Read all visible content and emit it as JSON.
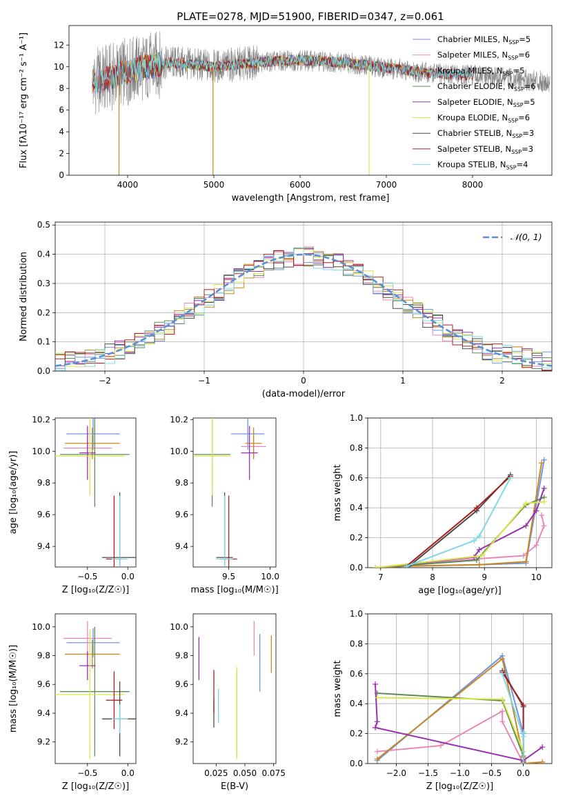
{
  "colors": {
    "series": [
      "#6f93e3",
      "#e888b8",
      "#c8871e",
      "#5e8a58",
      "#9a30b0",
      "#dbe64a",
      "#4a4a4a",
      "#a81e1e",
      "#7ed8e3"
    ],
    "spectrum_data": "#7f7f7f",
    "dashed": "#5a8fd6",
    "grid": "#b0b0b0"
  },
  "chart_data": [
    {
      "id": "spectrum",
      "type": "line",
      "title": "PLATE=0278, MJD=51900, FIBERID=0347, z=0.061",
      "xlabel": "wavelength [Angstrom, rest frame]",
      "ylabel": "Flux [fλ10⁻¹⁷ erg cm⁻² s⁻¹ A⁻¹]",
      "xlim": [
        3320,
        8920
      ],
      "ylim": [
        0,
        13.8
      ],
      "xticks": [
        4000,
        5000,
        6000,
        7000,
        8000
      ],
      "yticks": [
        0,
        2,
        4,
        6,
        8,
        10,
        12
      ],
      "grid": false,
      "legend_position": "top-right",
      "legend": [
        {
          "base": "Chabrier MILES, N",
          "sub": "SSP",
          "tail": "=5"
        },
        {
          "base": "Salpeter MILES, N",
          "sub": "SSP",
          "tail": "=6"
        },
        {
          "base": "Kroupa MILES, N",
          "sub": "SSP",
          "tail": "=5"
        },
        {
          "base": "Chabrier ELODIE, N",
          "sub": "SSP",
          "tail": "=6"
        },
        {
          "base": "Salpeter ELODIE, N",
          "sub": "SSP",
          "tail": "=5"
        },
        {
          "base": "Kroupa ELODIE, N",
          "sub": "SSP",
          "tail": "=6"
        },
        {
          "base": "Chabrier STELIB, N",
          "sub": "SSP",
          "tail": "=3"
        },
        {
          "base": "Salpeter STELIB, N",
          "sub": "SSP",
          "tail": "=3"
        },
        {
          "base": "Kroupa STELIB, N",
          "sub": "SSP",
          "tail": "=4"
        }
      ],
      "data_spectrum": {
        "x_range": [
          3600,
          8900
        ],
        "continuum": [
          [
            3600,
            8.6
          ],
          [
            3700,
            8.8
          ],
          [
            3900,
            9.3
          ],
          [
            4100,
            9.8
          ],
          [
            4500,
            10.4
          ],
          [
            5000,
            10.0
          ],
          [
            5500,
            10.4
          ],
          [
            6000,
            10.6
          ],
          [
            6500,
            10.4
          ],
          [
            7000,
            9.9
          ],
          [
            7500,
            9.4
          ],
          [
            8000,
            9.2
          ],
          [
            8900,
            8.6
          ]
        ]
      },
      "model_dropouts": [
        {
          "series": 2,
          "x": 3900
        },
        {
          "series": 2,
          "x": 4990
        },
        {
          "series": 5,
          "x": 6800
        }
      ],
      "model_ranges": [
        [
          3590,
          7420
        ],
        [
          3590,
          7420
        ],
        [
          3590,
          7420
        ],
        [
          4020,
          6810
        ],
        [
          4020,
          6810
        ],
        [
          4020,
          6810
        ],
        [
          3590,
          8000
        ],
        [
          3590,
          8000
        ],
        [
          3590,
          8000
        ]
      ]
    },
    {
      "id": "residuals",
      "type": "line",
      "xlabel": "(data-model)/error",
      "ylabel": "Normed distribution",
      "xlim": [
        -2.5,
        2.5
      ],
      "ylim": [
        0,
        0.51
      ],
      "xticks": [
        -2,
        -1,
        0,
        1,
        2
      ],
      "yticks": [
        0.0,
        0.1,
        0.2,
        0.3,
        0.4,
        0.5
      ],
      "grid": true,
      "legend_position": "top-right",
      "legend": [
        {
          "label": "𝒩(0, 1)",
          "style": "dashed"
        }
      ],
      "bin_width": 0.1,
      "bins_start": -2.5,
      "normal": {
        "mu": 0,
        "sigma": 1
      }
    },
    {
      "id": "age-vs-Z",
      "type": "scatter",
      "xlabel": "Z [log₁₀(Z/Z☉)]",
      "ylabel": "age  [log₁₀(age/yr)]",
      "xlim": [
        -0.9,
        0.1
      ],
      "ylim": [
        9.27,
        10.21
      ],
      "xticks": [
        -0.5,
        0.0
      ],
      "xtick_labels": [
        "−0.5",
        "0.0"
      ],
      "yticks": [
        9.4,
        9.6,
        9.8,
        10.0,
        10.2
      ],
      "errorbars": [
        {
          "series": 0,
          "x": -0.43,
          "xerr": 0.33,
          "y": 10.11,
          "yerr": 0.1
        },
        {
          "series": 1,
          "x": -0.5,
          "xerr": 0.3,
          "y": 10.02,
          "yerr": 0.07
        },
        {
          "series": 2,
          "x": -0.44,
          "xerr": 0.34,
          "y": 10.05,
          "yerr": 0.1
        },
        {
          "series": 3,
          "x": -0.41,
          "xerr": 0.43,
          "y": 9.98,
          "yerr": 0.33
        },
        {
          "series": 4,
          "x": -0.5,
          "xerr": 0.1,
          "y": 9.99,
          "yerr": 0.17
        },
        {
          "series": 5,
          "x": -0.47,
          "xerr": 0.43,
          "y": 9.97,
          "yerr": 0.25
        },
        {
          "series": 6,
          "x": -0.1,
          "xerr": 0.22,
          "y": 9.33,
          "yerr": 0.41
        },
        {
          "series": 7,
          "x": -0.17,
          "xerr": 0.1,
          "y": 9.32,
          "yerr": 0.4
        },
        {
          "series": 8,
          "x": -0.1,
          "xerr": 0.1,
          "y": 9.32,
          "yerr": 0.4
        }
      ]
    },
    {
      "id": "age-vs-mass",
      "type": "scatter",
      "xlabel": "mass [log₁₀(M/M☉)]",
      "ylabel": "",
      "xlim": [
        9.07,
        10.07
      ],
      "ylim": [
        9.27,
        10.21
      ],
      "xticks": [
        9.5,
        10.0
      ],
      "xtick_labels": [
        "9.5",
        "10.0"
      ],
      "yticks": [
        9.4,
        9.6,
        9.8,
        10.0,
        10.2
      ],
      "errorbars": [
        {
          "series": 0,
          "x": 9.73,
          "xerr": 0.2,
          "y": 10.11,
          "yerr": 0.1
        },
        {
          "series": 1,
          "x": 9.8,
          "xerr": 0.15,
          "y": 10.03,
          "yerr": 0.07
        },
        {
          "series": 2,
          "x": 9.8,
          "xerr": 0.1,
          "y": 10.05,
          "yerr": 0.1
        },
        {
          "series": 3,
          "x": 9.3,
          "xerr": 0.22,
          "y": 9.98,
          "yerr": 0.33
        },
        {
          "series": 4,
          "x": 9.75,
          "xerr": 0.1,
          "y": 9.99,
          "yerr": 0.17
        },
        {
          "series": 5,
          "x": 9.3,
          "xerr": 0.22,
          "y": 9.97,
          "yerr": 0.25
        },
        {
          "series": 6,
          "x": 9.45,
          "xerr": 0.1,
          "y": 9.33,
          "yerr": 0.41
        },
        {
          "series": 7,
          "x": 9.5,
          "xerr": 0.1,
          "y": 9.32,
          "yerr": 0.4
        },
        {
          "series": 8,
          "x": 9.45,
          "xerr": 0.1,
          "y": 9.32,
          "yerr": 0.4
        }
      ]
    },
    {
      "id": "weight-vs-age",
      "type": "line",
      "xlabel": "age  [log₁₀(age/yr)]",
      "ylabel": "mass weight",
      "xlim": [
        6.75,
        10.3
      ],
      "ylim": [
        0,
        1.0
      ],
      "xticks": [
        7,
        8,
        9,
        10
      ],
      "yticks": [
        0.0,
        0.2,
        0.4,
        0.6,
        0.8,
        1.0
      ],
      "grid": true,
      "series": [
        {
          "series": 0,
          "points": [
            [
              6.9,
              0.0
            ],
            [
              7.5,
              0.01
            ],
            [
              8.9,
              0.02
            ],
            [
              9.8,
              0.03
            ],
            [
              10.15,
              0.72
            ]
          ]
        },
        {
          "series": 1,
          "points": [
            [
              6.9,
              0.0
            ],
            [
              8.9,
              0.06
            ],
            [
              9.75,
              0.08
            ],
            [
              10.0,
              0.15
            ],
            [
              10.15,
              0.28
            ],
            [
              10.1,
              0.35
            ]
          ]
        },
        {
          "series": 2,
          "points": [
            [
              6.9,
              0.0
            ],
            [
              7.5,
              0.01
            ],
            [
              8.9,
              0.02
            ],
            [
              9.8,
              0.04
            ],
            [
              10.1,
              0.7
            ]
          ]
        },
        {
          "series": 3,
          "points": [
            [
              6.9,
              0.0
            ],
            [
              8.85,
              0.05
            ],
            [
              9.8,
              0.42
            ],
            [
              10.15,
              0.47
            ]
          ]
        },
        {
          "series": 4,
          "points": [
            [
              6.9,
              0.0
            ],
            [
              8.8,
              0.07
            ],
            [
              8.9,
              0.12
            ],
            [
              9.8,
              0.28
            ],
            [
              10.0,
              0.38
            ],
            [
              10.15,
              0.53
            ]
          ]
        },
        {
          "series": 5,
          "points": [
            [
              6.9,
              0.0
            ],
            [
              8.95,
              0.08
            ],
            [
              9.8,
              0.43
            ],
            [
              10.15,
              0.44
            ]
          ]
        },
        {
          "series": 6,
          "points": [
            [
              7.55,
              0.01
            ],
            [
              8.85,
              0.38
            ],
            [
              9.5,
              0.62
            ]
          ]
        },
        {
          "series": 7,
          "points": [
            [
              7.5,
              0.01
            ],
            [
              8.85,
              0.4
            ],
            [
              9.5,
              0.61
            ]
          ]
        },
        {
          "series": 8,
          "points": [
            [
              7.5,
              0.01
            ],
            [
              8.8,
              0.18
            ],
            [
              8.9,
              0.21
            ],
            [
              9.5,
              0.6
            ]
          ]
        }
      ]
    },
    {
      "id": "mass-vs-Z",
      "type": "scatter",
      "xlabel": "Z [log₁₀(Z/Z☉)]",
      "ylabel": "mass [log₁₀(M/M☉)]",
      "xlim": [
        -0.9,
        0.1
      ],
      "ylim": [
        9.05,
        10.09
      ],
      "xticks": [
        -0.5,
        0.0
      ],
      "xtick_labels": [
        "−0.5",
        "0.0"
      ],
      "yticks": [
        9.2,
        9.4,
        9.6,
        9.8,
        10.0
      ],
      "errorbars": [
        {
          "series": 0,
          "x": -0.43,
          "xerr": 0.33,
          "y": 9.89,
          "yerr": 0.1
        },
        {
          "series": 1,
          "x": -0.5,
          "xerr": 0.3,
          "y": 9.92,
          "yerr": 0.12
        },
        {
          "series": 2,
          "x": -0.44,
          "xerr": 0.34,
          "y": 9.81,
          "yerr": 0.1
        },
        {
          "series": 3,
          "x": -0.41,
          "xerr": 0.43,
          "y": 9.55,
          "yerr": 0.45
        },
        {
          "series": 4,
          "x": -0.5,
          "xerr": 0.1,
          "y": 9.73,
          "yerr": 0.1
        },
        {
          "series": 5,
          "x": -0.47,
          "xerr": 0.43,
          "y": 9.53,
          "yerr": 0.45
        },
        {
          "series": 6,
          "x": -0.1,
          "xerr": 0.22,
          "y": 9.36,
          "yerr": 0.26
        },
        {
          "series": 7,
          "x": -0.17,
          "xerr": 0.1,
          "y": 9.49,
          "yerr": 0.2
        },
        {
          "series": 8,
          "x": -0.1,
          "xerr": 0.1,
          "y": 9.36,
          "yerr": 0.1
        }
      ]
    },
    {
      "id": "mass-vs-EBV",
      "type": "scatter",
      "xlabel": "E(B-V)",
      "ylabel": "",
      "xlim": [
        0.005,
        0.077
      ],
      "ylim": [
        9.05,
        10.09
      ],
      "xticks": [
        0.025,
        0.05,
        0.075
      ],
      "xtick_labels": [
        "0.025",
        "0.050",
        "0.075"
      ],
      "yticks": [
        9.2,
        9.4,
        9.6,
        9.8,
        10.0
      ],
      "errorbars": [
        {
          "series": 0,
          "x": 0.063,
          "xerr": 0,
          "y": 9.75,
          "yerr": 0.2
        },
        {
          "series": 1,
          "x": 0.058,
          "xerr": 0,
          "y": 9.92,
          "yerr": 0.12
        },
        {
          "series": 2,
          "x": 0.073,
          "xerr": 0,
          "y": 9.81,
          "yerr": 0.13
        },
        {
          "series": 3,
          "x": 0.043,
          "xerr": 0,
          "y": 9.4,
          "yerr": 0.3
        },
        {
          "series": 4,
          "x": 0.01,
          "xerr": 0,
          "y": 9.78,
          "yerr": 0.15
        },
        {
          "series": 5,
          "x": 0.043,
          "xerr": 0,
          "y": 9.4,
          "yerr": 0.32
        },
        {
          "series": 6,
          "x": 0.023,
          "xerr": 0,
          "y": 9.4,
          "yerr": 0.1
        },
        {
          "series": 7,
          "x": 0.023,
          "xerr": 0,
          "y": 9.55,
          "yerr": 0.15
        },
        {
          "series": 8,
          "x": 0.027,
          "xerr": 0,
          "y": 9.45,
          "yerr": 0.12
        }
      ]
    },
    {
      "id": "weight-vs-Z",
      "type": "line",
      "xlabel": "Z [log₁₀(Z/Z☉)]",
      "ylabel": "mass weight",
      "xlim": [
        -2.45,
        0.45
      ],
      "ylim": [
        0,
        1.0
      ],
      "xticks": [
        -2.0,
        -1.5,
        -1.0,
        -0.5,
        0.0
      ],
      "xtick_labels": [
        "−2.0",
        "−1.5",
        "−1.0",
        "−0.5",
        "0.0"
      ],
      "yticks": [
        0.0,
        0.2,
        0.4,
        0.6,
        0.8,
        1.0
      ],
      "grid": true,
      "series": [
        {
          "series": 0,
          "points": [
            [
              -2.3,
              0.02
            ],
            [
              -0.33,
              0.72
            ],
            [
              0.0,
              0.2
            ],
            [
              0.0,
              0.05
            ]
          ]
        },
        {
          "series": 1,
          "points": [
            [
              -2.3,
              0.08
            ],
            [
              -1.3,
              0.12
            ],
            [
              -0.33,
              0.35
            ],
            [
              -0.33,
              0.28
            ],
            [
              0.0,
              0.0
            ]
          ]
        },
        {
          "series": 2,
          "points": [
            [
              -2.3,
              0.03
            ],
            [
              -0.33,
              0.7
            ],
            [
              0.0,
              0.04
            ],
            [
              0.0,
              0.0
            ],
            [
              0.3,
              0.01
            ]
          ]
        },
        {
          "series": 3,
          "points": [
            [
              -2.3,
              0.47
            ],
            [
              -0.33,
              0.42
            ],
            [
              0.0,
              0.05
            ],
            [
              0.0,
              0.0
            ]
          ]
        },
        {
          "series": 4,
          "points": [
            [
              -2.33,
              0.53
            ],
            [
              -2.3,
              0.28
            ],
            [
              -2.33,
              0.24
            ],
            [
              0.0,
              0.02
            ],
            [
              0.3,
              0.11
            ]
          ]
        },
        {
          "series": 5,
          "points": [
            [
              -2.3,
              0.44
            ],
            [
              -0.33,
              0.43
            ],
            [
              0.0,
              0.08
            ],
            [
              0.0,
              0.0
            ]
          ]
        },
        {
          "series": 6,
          "points": [
            [
              -0.33,
              0.62
            ],
            [
              0.0,
              0.38
            ],
            [
              0.0,
              0.01
            ]
          ]
        },
        {
          "series": 7,
          "points": [
            [
              -0.33,
              0.61
            ],
            [
              0.0,
              0.39
            ],
            [
              0.0,
              0.01
            ]
          ]
        },
        {
          "series": 8,
          "points": [
            [
              -0.33,
              0.6
            ],
            [
              0.0,
              0.18
            ],
            [
              0.0,
              0.21
            ],
            [
              0.0,
              0.0
            ]
          ]
        }
      ]
    }
  ]
}
